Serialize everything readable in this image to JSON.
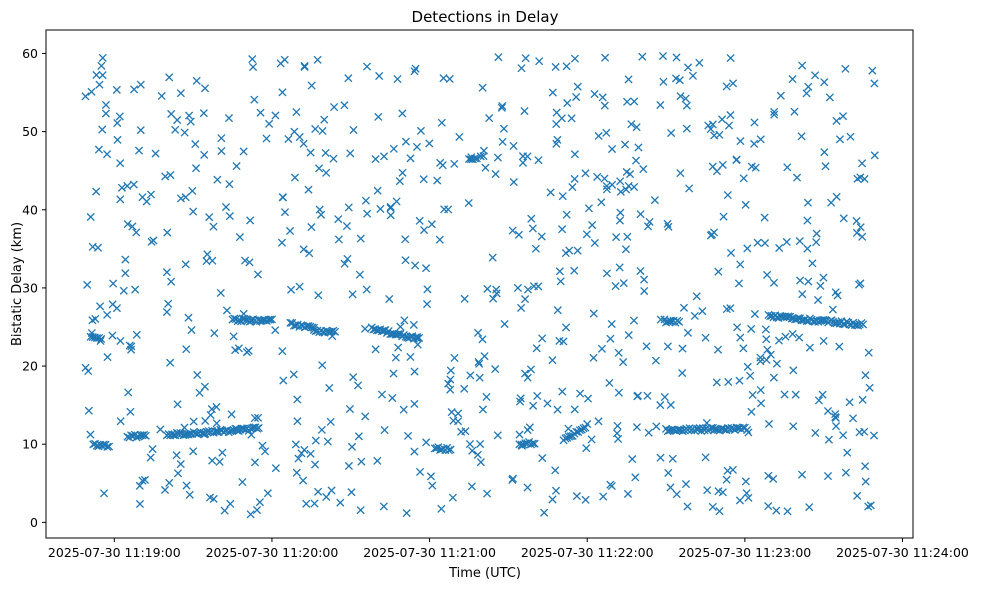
{
  "chart_data": {
    "type": "scatter",
    "title": "Detections in Delay",
    "xlabel": "Time (UTC)",
    "ylabel": "Bistatic Delay (km)",
    "marker": "x",
    "color": "#1f77b4",
    "grid": false,
    "xlim": [
      "2025-07-30 11:18:34",
      "2025-07-30 11:24:04"
    ],
    "ylim": [
      -2,
      63
    ],
    "x_ticks": [
      "2025-07-30 11:19:00",
      "2025-07-30 11:20:00",
      "2025-07-30 11:21:00",
      "2025-07-30 11:22:00",
      "2025-07-30 11:23:00",
      "2025-07-30 11:24:00"
    ],
    "y_ticks": [
      0,
      10,
      20,
      30,
      40,
      50,
      60
    ],
    "x_start": "2025-07-30 11:18:49",
    "x_end": "2025-07-30 11:23:50",
    "point_count": 1100,
    "tracks": [
      {
        "from": [
          "2025-07-30 11:18:52",
          10.0
        ],
        "to": [
          "2025-07-30 11:18:58",
          9.7
        ]
      },
      {
        "from": [
          "2025-07-30 11:19:05",
          11.0
        ],
        "to": [
          "2025-07-30 11:19:12",
          11.1
        ]
      },
      {
        "from": [
          "2025-07-30 11:19:20",
          11.2
        ],
        "to": [
          "2025-07-30 11:19:55",
          12.0
        ]
      },
      {
        "from": [
          "2025-07-30 11:18:51",
          23.8
        ],
        "to": [
          "2025-07-30 11:18:55",
          23.5
        ]
      },
      {
        "from": [
          "2025-07-30 11:19:45",
          25.9
        ],
        "to": [
          "2025-07-30 11:20:00",
          25.8
        ]
      },
      {
        "from": [
          "2025-07-30 11:20:07",
          25.4
        ],
        "to": [
          "2025-07-30 11:20:16",
          24.8
        ]
      },
      {
        "from": [
          "2025-07-30 11:20:16",
          24.5
        ],
        "to": [
          "2025-07-30 11:20:24",
          24.3
        ]
      },
      {
        "from": [
          "2025-07-30 11:20:38",
          24.8
        ],
        "to": [
          "2025-07-30 11:20:56",
          23.5
        ]
      },
      {
        "from": [
          "2025-07-30 11:21:02",
          9.5
        ],
        "to": [
          "2025-07-30 11:21:08",
          9.4
        ]
      },
      {
        "from": [
          "2025-07-30 11:21:15",
          46.6
        ],
        "to": [
          "2025-07-30 11:21:18",
          46.6
        ]
      },
      {
        "from": [
          "2025-07-30 11:21:35",
          10.0
        ],
        "to": [
          "2025-07-30 11:21:40",
          10.2
        ]
      },
      {
        "from": [
          "2025-07-30 11:21:51",
          10.4
        ],
        "to": [
          "2025-07-30 11:22:00",
          12.4
        ]
      },
      {
        "from": [
          "2025-07-30 11:22:30",
          11.8
        ],
        "to": [
          "2025-07-30 11:23:00",
          12.0
        ]
      },
      {
        "from": [
          "2025-07-30 11:22:30",
          25.7
        ],
        "to": [
          "2025-07-30 11:22:35",
          25.7
        ]
      },
      {
        "from": [
          "2025-07-30 11:23:09",
          26.4
        ],
        "to": [
          "2025-07-30 11:23:45",
          25.3
        ]
      }
    ]
  }
}
